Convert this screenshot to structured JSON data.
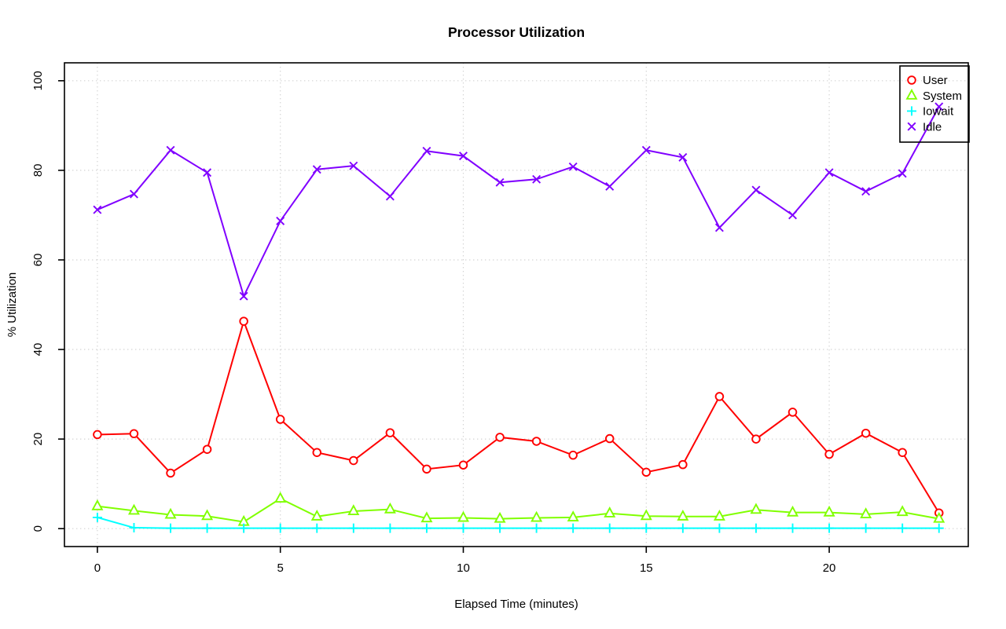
{
  "chart_data": {
    "type": "line",
    "title": "Processor Utilization",
    "xlabel": "Elapsed Time (minutes)",
    "ylabel": "% Utilization",
    "x": [
      0,
      1,
      2,
      3,
      4,
      5,
      6,
      7,
      8,
      9,
      10,
      11,
      12,
      13,
      14,
      15,
      16,
      17,
      18,
      19,
      20,
      21,
      22,
      23
    ],
    "x_ticks": [
      0,
      5,
      10,
      15,
      20
    ],
    "y_ticks": [
      0,
      20,
      40,
      60,
      80,
      100
    ],
    "xlim": [
      -0.9,
      23.8
    ],
    "ylim": [
      -4,
      104
    ],
    "grid": "dotted",
    "grid_color": "#d3d3d3",
    "axis_color": "#000000",
    "legend_position": "top-right",
    "series": [
      {
        "name": "User",
        "color": "#ff0000",
        "marker": "circle",
        "values": [
          21.0,
          21.2,
          12.4,
          17.7,
          46.3,
          24.4,
          17.0,
          15.2,
          21.4,
          13.3,
          14.2,
          20.4,
          19.5,
          16.4,
          20.1,
          12.6,
          14.3,
          29.5,
          20.0,
          26.0,
          16.6,
          21.3,
          17.0,
          3.5
        ]
      },
      {
        "name": "System",
        "color": "#80ff00",
        "marker": "triangle",
        "values": [
          5.0,
          4.0,
          3.1,
          2.8,
          1.5,
          6.7,
          2.7,
          3.9,
          4.3,
          2.3,
          2.4,
          2.2,
          2.4,
          2.5,
          3.4,
          2.8,
          2.7,
          2.7,
          4.2,
          3.6,
          3.6,
          3.2,
          3.7,
          2.2
        ]
      },
      {
        "name": "Iowait",
        "color": "#00ffff",
        "marker": "plus",
        "values": [
          2.5,
          0.2,
          0.1,
          0.1,
          0.1,
          0.1,
          0.1,
          0.1,
          0.1,
          0.1,
          0.1,
          0.1,
          0.1,
          0.1,
          0.1,
          0.1,
          0.1,
          0.1,
          0.1,
          0.1,
          0.1,
          0.1,
          0.1,
          0.1
        ]
      },
      {
        "name": "Idle",
        "color": "#8000ff",
        "marker": "x",
        "values": [
          71.2,
          74.7,
          84.5,
          79.5,
          51.9,
          68.7,
          80.2,
          81.0,
          74.2,
          84.3,
          83.2,
          77.3,
          78.0,
          80.8,
          76.4,
          84.5,
          82.9,
          67.2,
          75.6,
          70.0,
          79.5,
          75.3,
          79.3,
          94.2
        ]
      }
    ]
  }
}
